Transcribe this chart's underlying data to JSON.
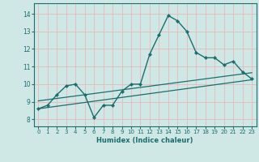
{
  "title": "",
  "xlabel": "Humidex (Indice chaleur)",
  "ylabel": "",
  "background_color": "#cfe8e6",
  "grid_color": "#e8b8b8",
  "line_color": "#1a6e6e",
  "x_ticks": [
    0,
    1,
    2,
    3,
    4,
    5,
    6,
    7,
    8,
    9,
    10,
    11,
    12,
    13,
    14,
    15,
    16,
    17,
    18,
    19,
    20,
    21,
    22,
    23
  ],
  "y_ticks": [
    8,
    9,
    10,
    11,
    12,
    13,
    14
  ],
  "xlim": [
    -0.5,
    23.5
  ],
  "ylim": [
    7.6,
    14.6
  ],
  "series1_x": [
    0,
    1,
    2,
    3,
    4,
    5,
    6,
    7,
    8,
    9,
    10,
    11,
    12,
    13,
    14,
    15,
    16,
    17,
    18,
    19,
    20,
    21,
    22,
    23
  ],
  "series1_y": [
    8.6,
    8.8,
    9.4,
    9.9,
    10.0,
    9.4,
    8.1,
    8.8,
    8.8,
    9.6,
    10.0,
    10.0,
    11.7,
    12.8,
    13.9,
    13.6,
    13.0,
    11.8,
    11.5,
    11.5,
    11.1,
    11.3,
    10.7,
    10.3
  ],
  "trend1_x": [
    0,
    23
  ],
  "trend1_y": [
    8.6,
    10.25
  ],
  "trend2_x": [
    0,
    23
  ],
  "trend2_y": [
    9.05,
    10.65
  ]
}
